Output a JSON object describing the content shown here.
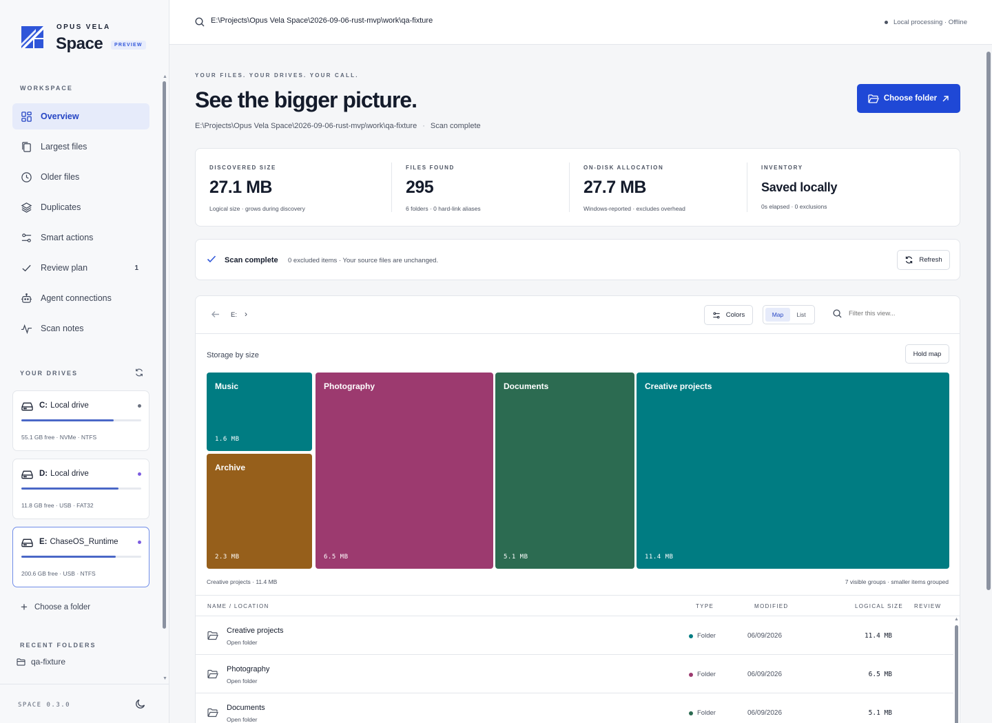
{
  "brand": {
    "top": "OPUS VELA",
    "name": "Space",
    "badge": "PREVIEW"
  },
  "sidebar": {
    "workspace_label": "WORKSPACE",
    "items": [
      {
        "label": "Overview",
        "icon": "grid-icon",
        "active": true
      },
      {
        "label": "Largest files",
        "icon": "copy-icon"
      },
      {
        "label": "Older files",
        "icon": "clock-icon"
      },
      {
        "label": "Duplicates",
        "icon": "layers-icon"
      },
      {
        "label": "Smart actions",
        "icon": "sliders-icon"
      },
      {
        "label": "Review plan",
        "icon": "check-icon",
        "count": "1"
      },
      {
        "label": "Agent connections",
        "icon": "bot-icon"
      },
      {
        "label": "Scan notes",
        "icon": "pulse-icon"
      }
    ],
    "drives_label": "YOUR DRIVES",
    "drives": [
      {
        "letter": "C:",
        "name": "Local drive",
        "meta": "55.1 GB free · NVMe · NTFS",
        "used_fraction": 0.77,
        "dot_color": "#6b7280"
      },
      {
        "letter": "D:",
        "name": "Local drive",
        "meta": "11.8 GB free · USB · FAT32",
        "used_fraction": 0.81,
        "dot_color": "#7c5ce0"
      },
      {
        "letter": "E:",
        "name": "ChaseOS_Runtime",
        "meta": "200.6 GB free · USB · NTFS",
        "used_fraction": 0.79,
        "dot_color": "#7c5ce0",
        "selected": true
      }
    ],
    "choose_folder": "Choose a folder",
    "recent_label": "RECENT FOLDERS",
    "recent": [
      "qa-fixture"
    ],
    "version": "SPACE 0.3.0"
  },
  "topbar": {
    "path": "E:\\Projects\\Opus Vela Space\\2026-09-06-rust-mvp\\work\\qa-fixture",
    "status": "Local processing · Offline"
  },
  "hero": {
    "eyebrow": "YOUR FILES. YOUR DRIVES. YOUR CALL.",
    "title": "See the bigger picture.",
    "path": "E:\\Projects\\Opus Vela Space\\2026-09-06-rust-mvp\\work\\qa-fixture",
    "sep": "·",
    "state": "Scan complete",
    "choose_button": "Choose folder"
  },
  "stats": [
    {
      "label": "DISCOVERED SIZE",
      "value": "27.1 MB",
      "sub": "Logical size · grows during discovery"
    },
    {
      "label": "FILES FOUND",
      "value": "295",
      "sub": "6 folders · 0 hard-link aliases"
    },
    {
      "label": "ON-DISK ALLOCATION",
      "value": "27.7 MB",
      "sub": "Windows-reported · excludes overhead"
    },
    {
      "label": "INVENTORY",
      "value": "Saved locally",
      "sub": "0s elapsed · 0 exclusions"
    }
  ],
  "scan": {
    "title": "Scan complete",
    "desc": "0 excluded items · Your source files are unchanged.",
    "refresh": "Refresh"
  },
  "browser": {
    "crumb": "E:",
    "colors_button": "Colors",
    "view_map": "Map",
    "view_list": "List",
    "filter_placeholder": "Filter this view...",
    "map_title": "Storage by size",
    "hold_map": "Hold map",
    "tiles": [
      {
        "name": "Music",
        "size": "1.6 MB",
        "color": "#007c82"
      },
      {
        "name": "Archive",
        "size": "2.3 MB",
        "color": "#965f1b"
      },
      {
        "name": "Photography",
        "size": "6.5 MB",
        "color": "#9c3a6f"
      },
      {
        "name": "Documents",
        "size": "5.1 MB",
        "color": "#2c6b51"
      },
      {
        "name": "Creative projects",
        "size": "11.4 MB",
        "color": "#007c82"
      }
    ],
    "map_foot_left": "Creative projects · 11.4 MB",
    "map_foot_right": "7 visible groups · smaller items grouped",
    "columns": [
      "NAME / LOCATION",
      "TYPE",
      "MODIFIED",
      "LOGICAL SIZE",
      "REVIEW"
    ],
    "rows": [
      {
        "name": "Creative projects",
        "sub": "Open folder",
        "type": "Folder",
        "dot": "#007c82",
        "modified": "06/09/2026",
        "size": "11.4 MB"
      },
      {
        "name": "Photography",
        "sub": "Open folder",
        "type": "Folder",
        "dot": "#9c3a6f",
        "modified": "06/09/2026",
        "size": "6.5 MB"
      },
      {
        "name": "Documents",
        "sub": "Open folder",
        "type": "Folder",
        "dot": "#2c6b51",
        "modified": "06/09/2026",
        "size": "5.1 MB"
      }
    ]
  }
}
